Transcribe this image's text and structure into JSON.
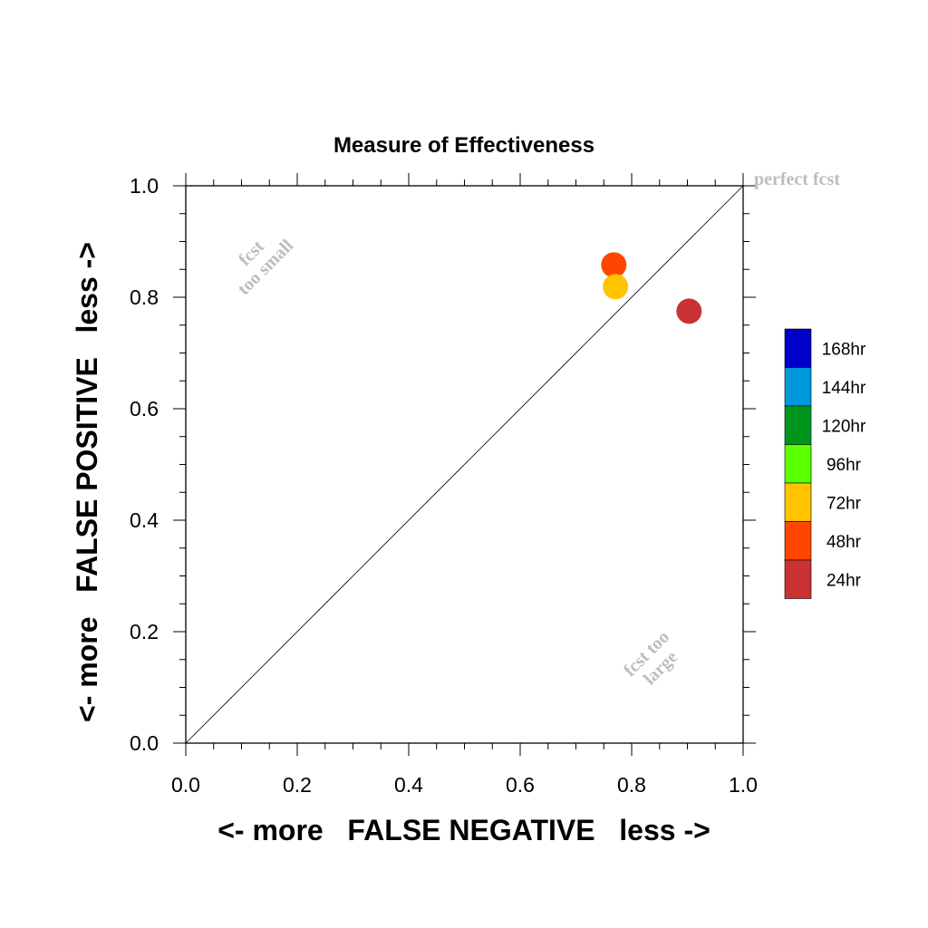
{
  "chart_data": {
    "type": "scatter",
    "title": "Measure of Effectiveness",
    "xlabel": "<- more   FALSE NEGATIVE   less ->",
    "ylabel": "<- more   FALSE POSITIVE   less ->",
    "xlim": [
      0,
      1
    ],
    "ylim": [
      0,
      1
    ],
    "xticks": [
      "0.0",
      "0.2",
      "0.4",
      "0.6",
      "0.8",
      "1.0"
    ],
    "yticks": [
      "0.0",
      "0.2",
      "0.4",
      "0.6",
      "0.8",
      "1.0"
    ],
    "grid": false,
    "reference_line": {
      "from": [
        0,
        0
      ],
      "to": [
        1,
        1
      ]
    },
    "annotations": {
      "top_right": "perfect fcst",
      "upper_left_line1": "fcst",
      "upper_left_line2": "too small",
      "lower_right_line1": "fcst too",
      "lower_right_line2": "large"
    },
    "legend": {
      "placement": "right",
      "entries": [
        {
          "label": "168hr",
          "color": "#0000c8"
        },
        {
          "label": "144hr",
          "color": "#0098dc"
        },
        {
          "label": "120hr",
          "color": "#00961e"
        },
        {
          "label": "96hr",
          "color": "#5aff00"
        },
        {
          "label": "72hr",
          "color": "#ffc300"
        },
        {
          "label": "48hr",
          "color": "#ff4600"
        },
        {
          "label": "24hr",
          "color": "#c83232"
        }
      ]
    },
    "series": [
      {
        "name": "24hr",
        "color": "#c83232",
        "x": 0.903,
        "y": 0.775
      },
      {
        "name": "48hr",
        "color": "#ff4600",
        "x": 0.768,
        "y": 0.858
      },
      {
        "name": "72hr",
        "color": "#ffc300",
        "x": 0.771,
        "y": 0.819
      }
    ]
  }
}
